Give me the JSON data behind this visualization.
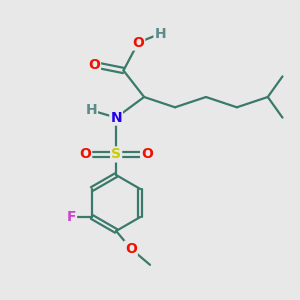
{
  "bg_color": "#e8e8e8",
  "atom_colors": {
    "C": "#3a7a6a",
    "H": "#5a8a8a",
    "O": "#ee1100",
    "N": "#2200ee",
    "S": "#cccc00",
    "F": "#cc44cc"
  },
  "bond_color": "#3a7a6a",
  "bond_lw": 1.6,
  "font_size": 10
}
